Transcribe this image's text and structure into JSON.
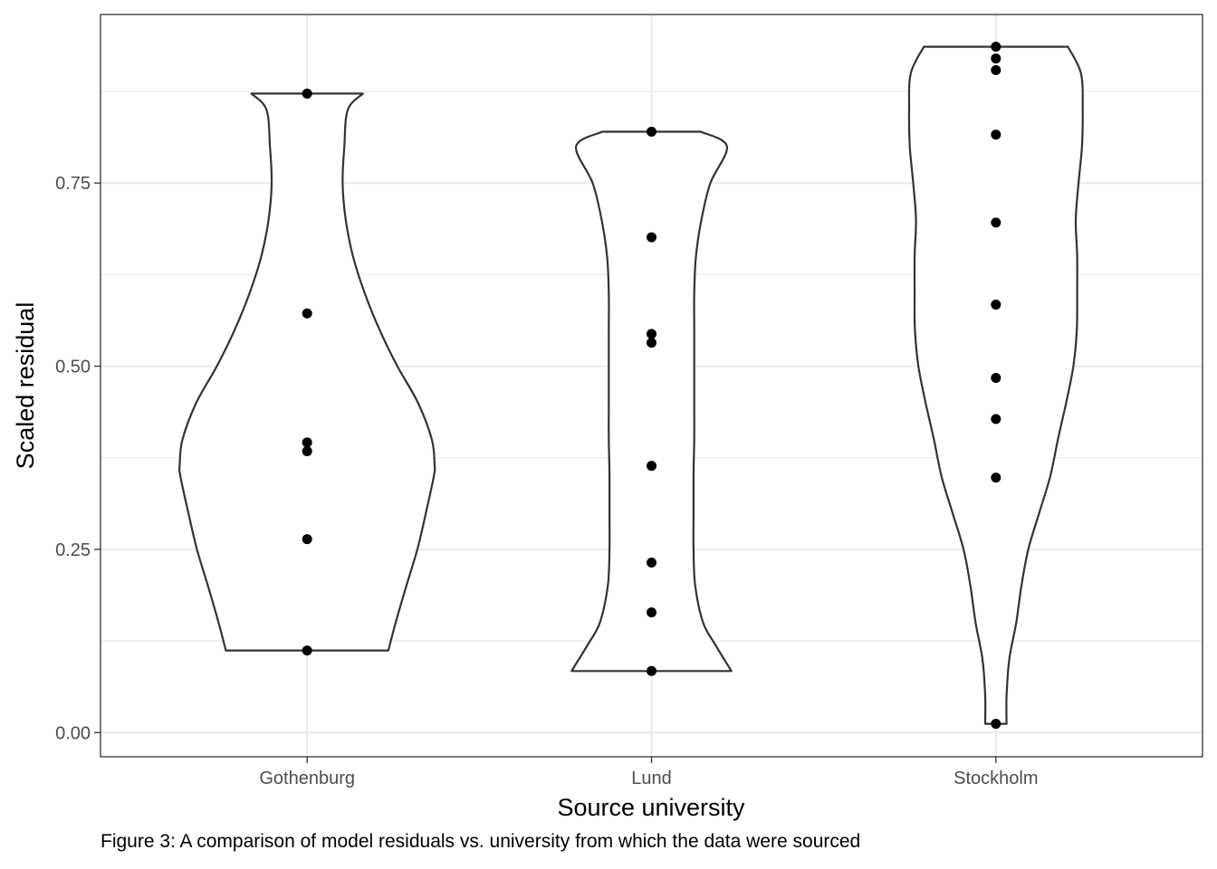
{
  "chart_data": {
    "type": "violin",
    "xlabel": "Source university",
    "ylabel": "Scaled residual",
    "categories": [
      "Gothenburg",
      "Lund",
      "Stockholm"
    ],
    "ylim": [
      -0.033,
      0.98
    ],
    "yticks": [
      0.0,
      0.25,
      0.5,
      0.75
    ],
    "ytick_labels": [
      "0.00",
      "0.25",
      "0.50",
      "0.75"
    ],
    "grid": true,
    "points": {
      "Gothenburg": [
        0.872,
        0.572,
        0.396,
        0.384,
        0.264,
        0.112
      ],
      "Lund": [
        0.82,
        0.676,
        0.544,
        0.532,
        0.364,
        0.232,
        0.164,
        0.084
      ],
      "Stockholm": [
        0.936,
        0.92,
        0.904,
        0.816,
        0.696,
        0.584,
        0.484,
        0.428,
        0.348,
        0.012
      ]
    },
    "violins": [
      {
        "category": "Gothenburg",
        "y": [
          0.112,
          0.15,
          0.2,
          0.25,
          0.3,
          0.35,
          0.366,
          0.4,
          0.45,
          0.5,
          0.55,
          0.6,
          0.65,
          0.7,
          0.75,
          0.8,
          0.85,
          0.872
        ],
        "width": [
          0.236,
          0.257,
          0.288,
          0.32,
          0.345,
          0.368,
          0.37,
          0.362,
          0.322,
          0.262,
          0.21,
          0.167,
          0.133,
          0.112,
          0.103,
          0.108,
          0.118,
          0.162
        ]
      },
      {
        "category": "Lund",
        "y": [
          0.084,
          0.12,
          0.15,
          0.2,
          0.25,
          0.3,
          0.35,
          0.4,
          0.45,
          0.5,
          0.55,
          0.6,
          0.65,
          0.7,
          0.75,
          0.8,
          0.82
        ],
        "width": [
          0.232,
          0.185,
          0.15,
          0.127,
          0.122,
          0.122,
          0.122,
          0.124,
          0.124,
          0.124,
          0.124,
          0.124,
          0.129,
          0.145,
          0.171,
          0.219,
          0.143
        ]
      },
      {
        "category": "Stockholm",
        "y": [
          0.012,
          0.05,
          0.1,
          0.15,
          0.2,
          0.25,
          0.3,
          0.35,
          0.4,
          0.45,
          0.5,
          0.55,
          0.6,
          0.65,
          0.7,
          0.75,
          0.8,
          0.85,
          0.9,
          0.936
        ],
        "width": [
          0.031,
          0.031,
          0.039,
          0.059,
          0.074,
          0.094,
          0.126,
          0.158,
          0.18,
          0.204,
          0.225,
          0.235,
          0.236,
          0.236,
          0.232,
          0.24,
          0.25,
          0.252,
          0.247,
          0.209
        ]
      }
    ]
  },
  "caption": "Figure 3: A comparison of model residuals vs. university from which the data were sourced"
}
